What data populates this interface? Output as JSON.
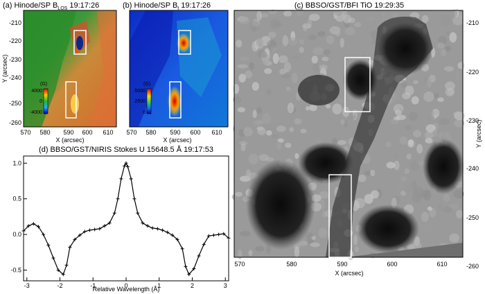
{
  "panels": {
    "a": {
      "title_main": "(a) Hinode/SP B",
      "title_sub": "LOS",
      "title_time": " 19:17:26",
      "xlabel": "X (arcsec)",
      "ylabel": "Y (arcsec)",
      "xticks": [
        "570",
        "580",
        "590",
        "600",
        "610"
      ],
      "yticks": [
        "-210",
        "-220",
        "-230",
        "-240",
        "-250",
        "-260"
      ],
      "cbar_unit": "(G)",
      "cbar_ticks": [
        "4000",
        "0",
        "-4000"
      ]
    },
    "b": {
      "title_main": "(b) Hinode/SP B",
      "title_sub": "t",
      "title_time": " 19:17:26",
      "xlabel": "X (arcsec)",
      "xticks": [
        "570",
        "580",
        "590",
        "600",
        "610"
      ],
      "cbar_unit": "(G)",
      "cbar_ticks": [
        "5000",
        "2500",
        "0"
      ]
    },
    "c": {
      "title": "(c) BBSO/GST/BFI TiO 19:29:35",
      "xlabel": "X (arcsec)",
      "ylabel": "Y (arcsec)",
      "xticks": [
        "570",
        "580",
        "590",
        "600",
        "610"
      ],
      "yticks": [
        "-210",
        "-220",
        "-230",
        "-240",
        "-250",
        "-260"
      ]
    }
  },
  "chart_data": {
    "type": "line",
    "title": "(d) BBSO/GST/NIRIS Stokes U 15648.5 Å 19:17:53",
    "xlabel": "Relative Wavelength (Å)",
    "ylabel": "",
    "xlim": [
      -3.1,
      3.1
    ],
    "ylim": [
      -0.65,
      1.1
    ],
    "xticks": [
      "-3",
      "-2",
      "-1",
      "0",
      "1",
      "2",
      "3"
    ],
    "yticks": [
      "-0.5",
      "0.0",
      "0.5",
      "1.0"
    ],
    "x": [
      -3.1,
      -2.95,
      -2.8,
      -2.65,
      -2.5,
      -2.35,
      -2.2,
      -2.05,
      -1.9,
      -1.8,
      -1.7,
      -1.55,
      -1.4,
      -1.25,
      -1.1,
      -0.95,
      -0.8,
      -0.65,
      -0.5,
      -0.35,
      -0.25,
      -0.15,
      -0.05,
      0.0,
      0.05,
      0.15,
      0.25,
      0.35,
      0.5,
      0.65,
      0.8,
      0.95,
      1.1,
      1.25,
      1.4,
      1.55,
      1.7,
      1.8,
      1.9,
      2.05,
      2.2,
      2.35,
      2.5,
      2.65,
      2.8,
      2.95,
      3.1
    ],
    "values": [
      0.05,
      0.12,
      0.15,
      0.11,
      0.0,
      -0.15,
      -0.33,
      -0.5,
      -0.56,
      -0.43,
      -0.18,
      -0.07,
      -0.01,
      0.04,
      0.06,
      0.07,
      0.08,
      0.12,
      0.16,
      0.3,
      0.5,
      0.78,
      0.96,
      1.0,
      0.95,
      0.78,
      0.5,
      0.3,
      0.16,
      0.12,
      0.09,
      0.08,
      0.06,
      0.03,
      -0.01,
      -0.07,
      -0.2,
      -0.45,
      -0.56,
      -0.48,
      -0.3,
      -0.14,
      -0.02,
      -0.01,
      0.0,
      0.01,
      -0.05
    ]
  }
}
